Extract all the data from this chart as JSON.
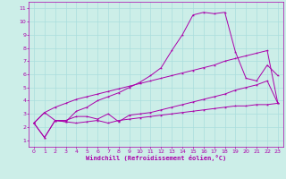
{
  "xlabel": "Windchill (Refroidissement éolien,°C)",
  "xlim": [
    -0.5,
    23.5
  ],
  "ylim": [
    0.5,
    11.5
  ],
  "xticks": [
    0,
    1,
    2,
    3,
    4,
    5,
    6,
    7,
    8,
    9,
    10,
    11,
    12,
    13,
    14,
    15,
    16,
    17,
    18,
    19,
    20,
    21,
    22,
    23
  ],
  "yticks": [
    1,
    2,
    3,
    4,
    5,
    6,
    7,
    8,
    9,
    10,
    11
  ],
  "bg_color": "#cceee8",
  "line_color": "#aa00aa",
  "grid_color": "#aadddd",
  "line1_x": [
    0,
    1,
    2,
    3,
    4,
    5,
    6,
    7,
    8,
    9,
    10,
    11,
    12,
    13,
    14,
    15,
    16,
    17,
    18,
    19,
    20,
    21,
    22,
    23
  ],
  "line1_y": [
    2.3,
    1.2,
    2.5,
    2.4,
    2.3,
    2.4,
    2.5,
    2.3,
    2.5,
    2.6,
    2.7,
    2.8,
    2.9,
    3.0,
    3.1,
    3.2,
    3.3,
    3.4,
    3.5,
    3.6,
    3.6,
    3.7,
    3.7,
    3.8
  ],
  "line2_x": [
    0,
    1,
    2,
    3,
    4,
    5,
    6,
    7,
    8,
    9,
    10,
    11,
    12,
    13,
    14,
    15,
    16,
    17,
    18,
    19,
    20,
    21,
    22,
    23
  ],
  "line2_y": [
    2.3,
    3.1,
    2.5,
    2.5,
    2.8,
    2.8,
    2.6,
    3.0,
    2.4,
    2.9,
    3.0,
    3.1,
    3.3,
    3.5,
    3.7,
    3.9,
    4.1,
    4.3,
    4.5,
    4.8,
    5.0,
    5.2,
    5.5,
    3.8
  ],
  "line3_x": [
    0,
    1,
    2,
    3,
    4,
    5,
    6,
    7,
    8,
    9,
    10,
    11,
    12,
    13,
    14,
    15,
    16,
    17,
    18,
    19,
    20,
    21,
    22,
    23
  ],
  "line3_y": [
    2.3,
    3.1,
    3.5,
    3.8,
    4.1,
    4.3,
    4.5,
    4.7,
    4.9,
    5.1,
    5.3,
    5.5,
    5.7,
    5.9,
    6.1,
    6.3,
    6.5,
    6.7,
    7.0,
    7.2,
    7.4,
    7.6,
    7.8,
    3.8
  ],
  "line4_x": [
    0,
    1,
    2,
    3,
    4,
    5,
    6,
    7,
    8,
    9,
    10,
    11,
    12,
    13,
    14,
    15,
    16,
    17,
    18,
    19,
    20,
    21,
    22,
    23
  ],
  "line4_y": [
    2.3,
    1.2,
    2.5,
    2.4,
    3.2,
    3.5,
    4.0,
    4.3,
    4.6,
    5.0,
    5.4,
    5.9,
    6.5,
    7.8,
    9.0,
    10.5,
    10.7,
    10.6,
    10.7,
    7.7,
    5.7,
    5.5,
    6.7,
    5.9
  ]
}
